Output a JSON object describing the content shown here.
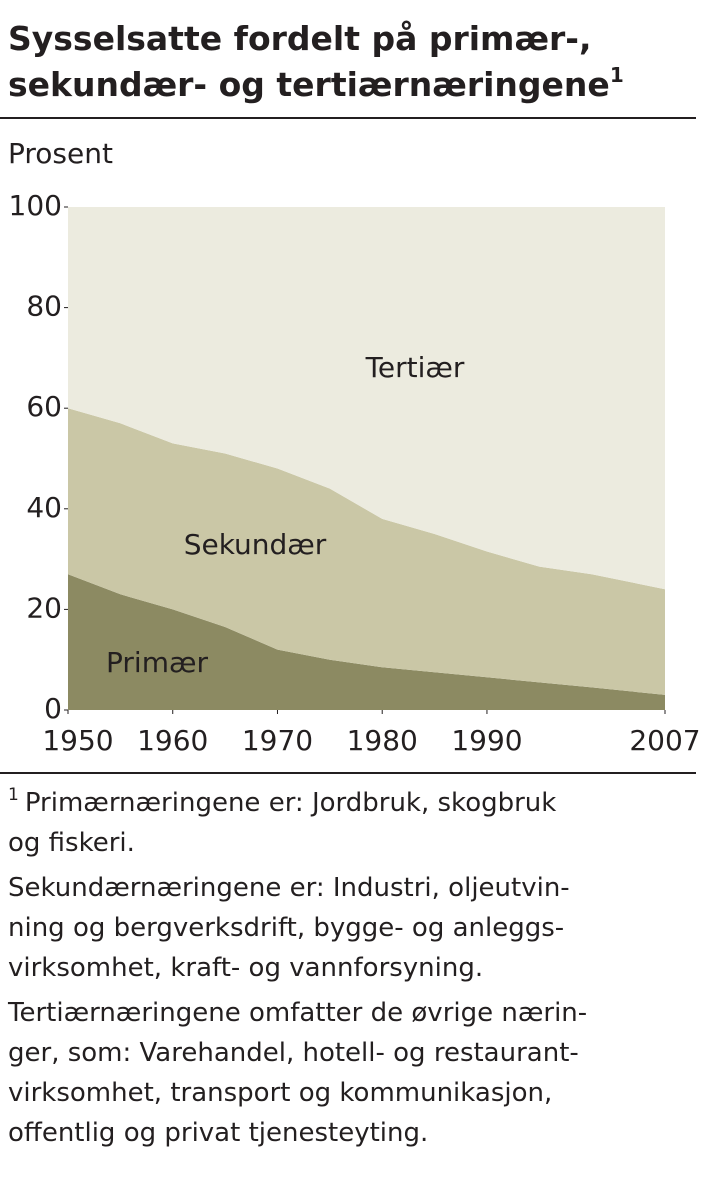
{
  "chart_data": {
    "type": "stacked-area",
    "title": [
      "Sysselsatte fordelt på primær-,",
      "sekundær- og tertiærnæringene"
    ],
    "footnote_marker": "1",
    "y_label": "Prosent",
    "x": [
      1950,
      1955,
      1960,
      1965,
      1970,
      1975,
      1980,
      1985,
      1990,
      1995,
      2000,
      2007
    ],
    "xlim": [
      1950,
      2007
    ],
    "xticks": [
      1950,
      1960,
      1970,
      1980,
      1990,
      2007
    ],
    "ylim": [
      0,
      100
    ],
    "yticks": [
      0,
      20,
      40,
      60,
      80,
      100
    ],
    "series": [
      {
        "name": "Primær",
        "color": "#8c8a62",
        "values": [
          27,
          23,
          20,
          16.5,
          12,
          10,
          8.5,
          7.5,
          6.5,
          5.5,
          4.5,
          3
        ]
      },
      {
        "name": "Sekundær",
        "color": "#cac7a6",
        "values": [
          33,
          34,
          33,
          34.5,
          36,
          34,
          29.5,
          27.5,
          25,
          23,
          22.5,
          21
        ]
      },
      {
        "name": "Tertiær",
        "color": "#ecebdf",
        "values": [
          40,
          43,
          47,
          49,
          52,
          56,
          62,
          65,
          68.5,
          71.5,
          73,
          76
        ]
      }
    ],
    "notes": [
      {
        "lines": [
          "Primærnæringene er: Jordbruk, skogbruk",
          "og fiskeri."
        ]
      },
      {
        "lines": [
          "Sekundærnæringene er: Industri, oljeutvin-",
          "ning og bergverksdrift, bygge- og anleggs-",
          "virksomhet, kraft- og vannforsyning."
        ]
      },
      {
        "lines": [
          "Tertiærnæringene omfatter de øvrige nærin-",
          "ger, som: Varehandel, hotell- og restaurant-",
          "virksomhet, transport og kommunikasjon,",
          "offentlig og privat tjenesteyting."
        ]
      }
    ]
  }
}
